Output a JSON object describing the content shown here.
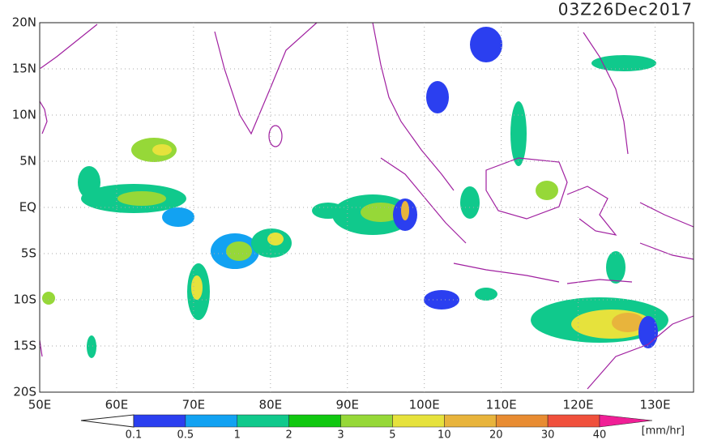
{
  "title": "03Z26Dec2017",
  "lat_labels": [
    "20N",
    "15N",
    "10N",
    "5N",
    "EQ",
    "5S",
    "10S",
    "15S",
    "20S"
  ],
  "lon_labels": [
    "50E",
    "60E",
    "70E",
    "80E",
    "90E",
    "100E",
    "110E",
    "120E",
    "130E"
  ],
  "colorbar": {
    "labels": [
      "0.1",
      "0.5",
      "1",
      "2",
      "3",
      "5",
      "10",
      "20",
      "30",
      "40"
    ],
    "colors": [
      "#2b3ff0",
      "#12a2f2",
      "#10c98c",
      "#10c810",
      "#96d838",
      "#e6e23c",
      "#e8b43c",
      "#e88c32",
      "#f0503c",
      "#f01e96"
    ],
    "unit": "[mm/hr]"
  }
}
